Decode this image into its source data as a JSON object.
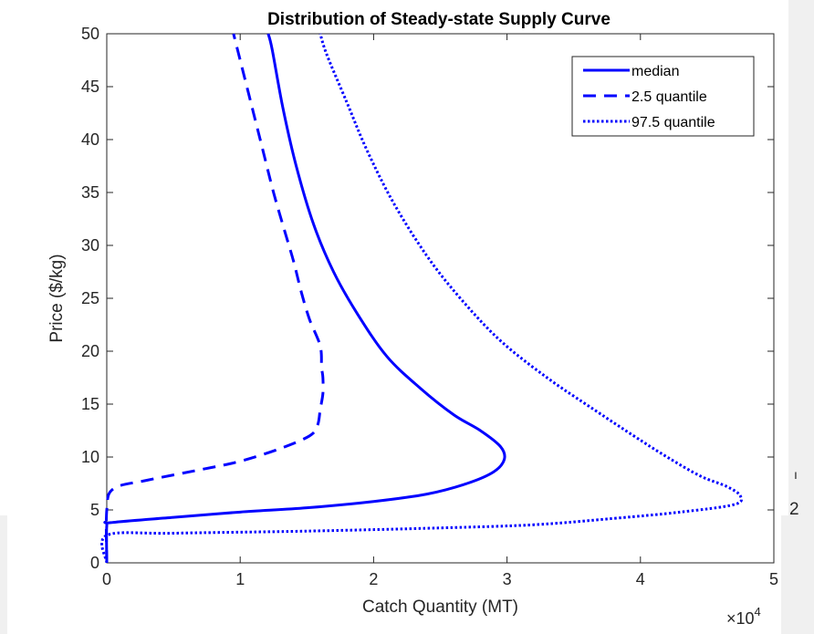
{
  "background_fragments": {
    "right_digit": "2",
    "right_mark": "ı"
  },
  "chart_data": {
    "type": "line",
    "title": "Distribution of Steady-state Supply Curve",
    "xlabel": "Catch Quantity (MT)",
    "ylabel": "Price ($/kg)",
    "x_exponent_label": "×10",
    "x_exponent_power": "4",
    "xlim": [
      0,
      5
    ],
    "ylim": [
      0,
      50
    ],
    "x_ticks": [
      "0",
      "1",
      "2",
      "3",
      "4",
      "5"
    ],
    "y_ticks": [
      "0",
      "5",
      "10",
      "15",
      "20",
      "25",
      "30",
      "35",
      "40",
      "45",
      "50"
    ],
    "grid": false,
    "legend_placement": "top-right",
    "color": "#0000ff",
    "series": [
      {
        "name": "median",
        "style": "solid",
        "points": [
          [
            0.0,
            0.0
          ],
          [
            0.0,
            3.5
          ],
          [
            0.03,
            3.8
          ],
          [
            0.5,
            4.3
          ],
          [
            1.0,
            4.8
          ],
          [
            1.5,
            5.2
          ],
          [
            2.0,
            5.8
          ],
          [
            2.4,
            6.5
          ],
          [
            2.7,
            7.5
          ],
          [
            2.9,
            8.6
          ],
          [
            2.98,
            9.8
          ],
          [
            2.95,
            11.0
          ],
          [
            2.8,
            12.5
          ],
          [
            2.6,
            14.0
          ],
          [
            2.35,
            16.5
          ],
          [
            2.1,
            19.5
          ],
          [
            1.88,
            23.5
          ],
          [
            1.7,
            27.5
          ],
          [
            1.55,
            32.0
          ],
          [
            1.42,
            37.5
          ],
          [
            1.32,
            43.0
          ],
          [
            1.24,
            48.5
          ],
          [
            1.21,
            50.0
          ]
        ]
      },
      {
        "name": "2.5 quantile",
        "style": "dashed",
        "points": [
          [
            0.0,
            0.0
          ],
          [
            0.0,
            5.0
          ],
          [
            0.05,
            7.0
          ],
          [
            0.3,
            7.8
          ],
          [
            0.7,
            8.8
          ],
          [
            1.0,
            9.6
          ],
          [
            1.3,
            10.8
          ],
          [
            1.52,
            12.0
          ],
          [
            1.58,
            13.0
          ],
          [
            1.6,
            14.5
          ],
          [
            1.62,
            16.0
          ],
          [
            1.62,
            17.5
          ],
          [
            1.61,
            18.5
          ],
          [
            1.6,
            20.5
          ],
          [
            1.52,
            23.0
          ],
          [
            1.46,
            25.5
          ],
          [
            1.4,
            28.5
          ],
          [
            1.33,
            31.5
          ],
          [
            1.25,
            35.0
          ],
          [
            1.17,
            39.0
          ],
          [
            1.09,
            43.0
          ],
          [
            1.01,
            47.0
          ],
          [
            0.95,
            50.0
          ]
        ]
      },
      {
        "name": "97.5 quantile",
        "style": "dotted",
        "points": [
          [
            0.0,
            0.0
          ],
          [
            0.0,
            2.6
          ],
          [
            0.5,
            2.8
          ],
          [
            1.5,
            3.0
          ],
          [
            2.5,
            3.3
          ],
          [
            3.2,
            3.6
          ],
          [
            3.8,
            4.2
          ],
          [
            4.3,
            4.8
          ],
          [
            4.7,
            5.5
          ],
          [
            4.75,
            6.3
          ],
          [
            4.65,
            7.2
          ],
          [
            4.45,
            8.2
          ],
          [
            4.2,
            10.0
          ],
          [
            3.95,
            12.0
          ],
          [
            3.65,
            14.5
          ],
          [
            3.3,
            17.5
          ],
          [
            2.95,
            21.0
          ],
          [
            2.65,
            25.0
          ],
          [
            2.4,
            29.0
          ],
          [
            2.15,
            34.0
          ],
          [
            1.95,
            39.0
          ],
          [
            1.8,
            43.5
          ],
          [
            1.65,
            48.0
          ],
          [
            1.6,
            50.0
          ]
        ]
      }
    ]
  }
}
